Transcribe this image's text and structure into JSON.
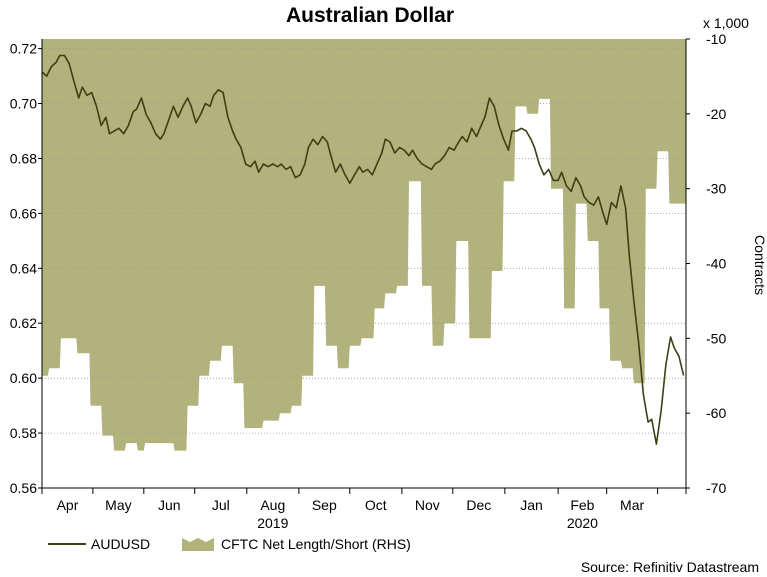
{
  "chart_data": {
    "type": "line",
    "title": "Australian Dollar",
    "source": "Source: Refinitiv Datastream",
    "left_axis": {
      "ticks": [
        0.56,
        0.58,
        0.6,
        0.62,
        0.64,
        0.66,
        0.68,
        0.7,
        0.72
      ],
      "tick_labels": [
        "0.56",
        "0.58",
        "0.60",
        "0.62",
        "0.64",
        "0.66",
        "0.68",
        "0.70",
        "0.72"
      ],
      "range": [
        0.56,
        0.7235
      ]
    },
    "right_axis": {
      "label": "Contracts",
      "multiplier_label": "x 1,000",
      "ticks": [
        -70,
        -60,
        -50,
        -40,
        -30,
        -20,
        -10
      ],
      "tick_labels": [
        "-70",
        "-60",
        "-50",
        "-40",
        "-30",
        "-20",
        "-10"
      ],
      "range": [
        -70,
        -10
      ]
    },
    "x_axis": {
      "range_weeks": [
        0,
        54.4
      ],
      "boundaries_weeks": [
        0,
        4.3,
        8.6,
        12.9,
        17.3,
        21.7,
        26.0,
        30.4,
        34.7,
        39.1,
        43.6,
        47.7,
        52.0,
        54.4
      ],
      "month_labels": [
        "Apr",
        "May",
        "Jun",
        "Jul",
        "Aug",
        "Sep",
        "Oct",
        "Nov",
        "Dec",
        "Jan",
        "Feb",
        "Mar"
      ],
      "year_labels": [
        {
          "text": "2019",
          "month_index": 4
        },
        {
          "text": "2020",
          "month_index": 10
        }
      ]
    },
    "grid": true,
    "legend_position": "bottom-left",
    "series": [
      {
        "name": "AUDUSD",
        "color": "#3f3f16",
        "axis": "left",
        "points": [
          [
            0.0,
            0.7115
          ],
          [
            0.4,
            0.71
          ],
          [
            0.8,
            0.7135
          ],
          [
            1.2,
            0.715
          ],
          [
            1.5,
            0.7175
          ],
          [
            1.9,
            0.7175
          ],
          [
            2.3,
            0.7145
          ],
          [
            2.7,
            0.708
          ],
          [
            3.1,
            0.702
          ],
          [
            3.4,
            0.706
          ],
          [
            3.8,
            0.703
          ],
          [
            4.2,
            0.704
          ],
          [
            4.6,
            0.699
          ],
          [
            5.0,
            0.692
          ],
          [
            5.4,
            0.695
          ],
          [
            5.7,
            0.689
          ],
          [
            6.1,
            0.69
          ],
          [
            6.5,
            0.691
          ],
          [
            6.9,
            0.689
          ],
          [
            7.3,
            0.692
          ],
          [
            7.7,
            0.697
          ],
          [
            8.0,
            0.698
          ],
          [
            8.4,
            0.702
          ],
          [
            8.8,
            0.696
          ],
          [
            9.2,
            0.693
          ],
          [
            9.6,
            0.689
          ],
          [
            10.0,
            0.687
          ],
          [
            10.3,
            0.689
          ],
          [
            10.7,
            0.694
          ],
          [
            11.1,
            0.699
          ],
          [
            11.5,
            0.695
          ],
          [
            11.9,
            0.699
          ],
          [
            12.3,
            0.702
          ],
          [
            12.6,
            0.699
          ],
          [
            13.0,
            0.693
          ],
          [
            13.4,
            0.696
          ],
          [
            13.8,
            0.7
          ],
          [
            14.2,
            0.699
          ],
          [
            14.5,
            0.703
          ],
          [
            14.9,
            0.705
          ],
          [
            15.3,
            0.704
          ],
          [
            15.7,
            0.695
          ],
          [
            16.1,
            0.69
          ],
          [
            16.4,
            0.687
          ],
          [
            16.8,
            0.684
          ],
          [
            17.2,
            0.678
          ],
          [
            17.6,
            0.677
          ],
          [
            18.0,
            0.679
          ],
          [
            18.3,
            0.675
          ],
          [
            18.7,
            0.678
          ],
          [
            19.1,
            0.677
          ],
          [
            19.5,
            0.678
          ],
          [
            19.9,
            0.677
          ],
          [
            20.2,
            0.678
          ],
          [
            20.6,
            0.676
          ],
          [
            21.0,
            0.677
          ],
          [
            21.4,
            0.673
          ],
          [
            21.8,
            0.674
          ],
          [
            22.2,
            0.678
          ],
          [
            22.5,
            0.684
          ],
          [
            22.9,
            0.687
          ],
          [
            23.3,
            0.685
          ],
          [
            23.7,
            0.688
          ],
          [
            24.1,
            0.686
          ],
          [
            24.4,
            0.681
          ],
          [
            24.8,
            0.675
          ],
          [
            25.2,
            0.678
          ],
          [
            25.6,
            0.674
          ],
          [
            26.0,
            0.671
          ],
          [
            26.4,
            0.674
          ],
          [
            26.8,
            0.677
          ],
          [
            27.1,
            0.675
          ],
          [
            27.5,
            0.676
          ],
          [
            27.9,
            0.674
          ],
          [
            28.3,
            0.678
          ],
          [
            28.7,
            0.682
          ],
          [
            29.0,
            0.687
          ],
          [
            29.4,
            0.686
          ],
          [
            29.8,
            0.682
          ],
          [
            30.2,
            0.684
          ],
          [
            30.6,
            0.683
          ],
          [
            31.0,
            0.681
          ],
          [
            31.3,
            0.683
          ],
          [
            31.7,
            0.68
          ],
          [
            32.1,
            0.678
          ],
          [
            32.5,
            0.677
          ],
          [
            32.9,
            0.676
          ],
          [
            33.2,
            0.678
          ],
          [
            33.6,
            0.679
          ],
          [
            34.0,
            0.681
          ],
          [
            34.4,
            0.684
          ],
          [
            34.8,
            0.683
          ],
          [
            35.2,
            0.686
          ],
          [
            35.5,
            0.688
          ],
          [
            35.9,
            0.686
          ],
          [
            36.3,
            0.691
          ],
          [
            36.7,
            0.688
          ],
          [
            37.1,
            0.692
          ],
          [
            37.4,
            0.695
          ],
          [
            37.8,
            0.702
          ],
          [
            38.2,
            0.699
          ],
          [
            38.6,
            0.692
          ],
          [
            39.0,
            0.687
          ],
          [
            39.4,
            0.683
          ],
          [
            39.7,
            0.69
          ],
          [
            40.1,
            0.69
          ],
          [
            40.5,
            0.691
          ],
          [
            40.9,
            0.69
          ],
          [
            41.3,
            0.687
          ],
          [
            41.6,
            0.684
          ],
          [
            42.0,
            0.678
          ],
          [
            42.4,
            0.674
          ],
          [
            42.8,
            0.676
          ],
          [
            43.2,
            0.672
          ],
          [
            43.6,
            0.672
          ],
          [
            43.9,
            0.675
          ],
          [
            44.3,
            0.67
          ],
          [
            44.7,
            0.668
          ],
          [
            45.1,
            0.673
          ],
          [
            45.5,
            0.67
          ],
          [
            45.8,
            0.666
          ],
          [
            46.2,
            0.664
          ],
          [
            46.6,
            0.663
          ],
          [
            47.0,
            0.666
          ],
          [
            47.4,
            0.66
          ],
          [
            47.7,
            0.656
          ],
          [
            48.1,
            0.664
          ],
          [
            48.5,
            0.662
          ],
          [
            48.9,
            0.67
          ],
          [
            49.3,
            0.662
          ],
          [
            49.6,
            0.645
          ],
          [
            50.0,
            0.628
          ],
          [
            50.4,
            0.613
          ],
          [
            50.8,
            0.594
          ],
          [
            51.2,
            0.584
          ],
          [
            51.5,
            0.585
          ],
          [
            51.9,
            0.576
          ],
          [
            52.3,
            0.588
          ],
          [
            52.7,
            0.605
          ],
          [
            53.1,
            0.615
          ],
          [
            53.4,
            0.611
          ],
          [
            53.8,
            0.608
          ],
          [
            54.2,
            0.601
          ]
        ]
      },
      {
        "name": "CFTC Net Length/Short (RHS)",
        "color": "#b2b27c",
        "axis": "right",
        "type": "area",
        "baseline": -70,
        "points": [
          [
            0.0,
            -55.0
          ],
          [
            0.5,
            -55.0
          ],
          [
            0.6,
            -54.0
          ],
          [
            1.5,
            -54.0
          ],
          [
            1.6,
            -50.0
          ],
          [
            2.9,
            -50.0
          ],
          [
            3.0,
            -52.0
          ],
          [
            4.0,
            -52.0
          ],
          [
            4.1,
            -59.0
          ],
          [
            5.0,
            -59.0
          ],
          [
            5.1,
            -63.0
          ],
          [
            6.0,
            -63.0
          ],
          [
            6.1,
            -65.0
          ],
          [
            7.0,
            -65.0
          ],
          [
            7.1,
            -64.0
          ],
          [
            8.0,
            -64.0
          ],
          [
            8.1,
            -65.0
          ],
          [
            8.6,
            -65.0
          ],
          [
            8.7,
            -64.0
          ],
          [
            11.1,
            -64.0
          ],
          [
            11.2,
            -65.0
          ],
          [
            12.2,
            -65.0
          ],
          [
            12.3,
            -59.0
          ],
          [
            13.2,
            -59.0
          ],
          [
            13.3,
            -55.0
          ],
          [
            14.1,
            -55.0
          ],
          [
            14.2,
            -53.0
          ],
          [
            15.1,
            -53.0
          ],
          [
            15.2,
            -51.0
          ],
          [
            16.1,
            -51.0
          ],
          [
            16.2,
            -56.0
          ],
          [
            17.0,
            -56.0
          ],
          [
            17.1,
            -62.0
          ],
          [
            18.6,
            -62.0
          ],
          [
            18.7,
            -61.0
          ],
          [
            20.0,
            -61.0
          ],
          [
            20.1,
            -60.0
          ],
          [
            21.0,
            -60.0
          ],
          [
            21.1,
            -59.0
          ],
          [
            21.9,
            -59.0
          ],
          [
            22.0,
            -55.0
          ],
          [
            22.9,
            -55.0
          ],
          [
            23.0,
            -43.0
          ],
          [
            23.9,
            -43.0
          ],
          [
            24.0,
            -51.0
          ],
          [
            24.9,
            -51.0
          ],
          [
            25.0,
            -54.0
          ],
          [
            25.9,
            -54.0
          ],
          [
            26.0,
            -51.0
          ],
          [
            26.9,
            -51.0
          ],
          [
            27.0,
            -50.0
          ],
          [
            28.0,
            -50.0
          ],
          [
            28.1,
            -46.0
          ],
          [
            28.9,
            -46.0
          ],
          [
            29.0,
            -44.0
          ],
          [
            29.9,
            -44.0
          ],
          [
            30.0,
            -43.0
          ],
          [
            30.9,
            -43.0
          ],
          [
            31.0,
            -29.0
          ],
          [
            32.0,
            -29.0
          ],
          [
            32.1,
            -43.0
          ],
          [
            32.9,
            -43.0
          ],
          [
            33.0,
            -51.0
          ],
          [
            33.9,
            -51.0
          ],
          [
            34.0,
            -48.0
          ],
          [
            34.9,
            -48.0
          ],
          [
            35.0,
            -37.0
          ],
          [
            36.0,
            -37.0
          ],
          [
            36.1,
            -50.0
          ],
          [
            37.0,
            -50.0
          ],
          [
            37.1,
            -50.0
          ],
          [
            37.9,
            -50.0
          ],
          [
            38.0,
            -41.0
          ],
          [
            38.9,
            -41.0
          ],
          [
            39.0,
            -29.0
          ],
          [
            39.9,
            -29.0
          ],
          [
            40.0,
            -19.0
          ],
          [
            40.9,
            -19.0
          ],
          [
            41.0,
            -20.0
          ],
          [
            41.9,
            -20.0
          ],
          [
            42.0,
            -18.0
          ],
          [
            42.9,
            -18.0
          ],
          [
            43.0,
            -30.0
          ],
          [
            44.0,
            -30.0
          ],
          [
            44.1,
            -46.0
          ],
          [
            45.0,
            -46.0
          ],
          [
            45.1,
            -32.0
          ],
          [
            46.0,
            -32.0
          ],
          [
            46.1,
            -37.0
          ],
          [
            47.0,
            -37.0
          ],
          [
            47.1,
            -46.0
          ],
          [
            47.9,
            -46.0
          ],
          [
            48.0,
            -53.0
          ],
          [
            48.9,
            -53.0
          ],
          [
            49.0,
            -54.0
          ],
          [
            49.9,
            -54.0
          ],
          [
            50.0,
            -56.0
          ],
          [
            50.9,
            -56.0
          ],
          [
            51.0,
            -30.0
          ],
          [
            51.9,
            -30.0
          ],
          [
            52.0,
            -25.0
          ],
          [
            52.9,
            -25.0
          ],
          [
            53.0,
            -32.0
          ],
          [
            54.4,
            -32.0
          ]
        ]
      }
    ]
  }
}
